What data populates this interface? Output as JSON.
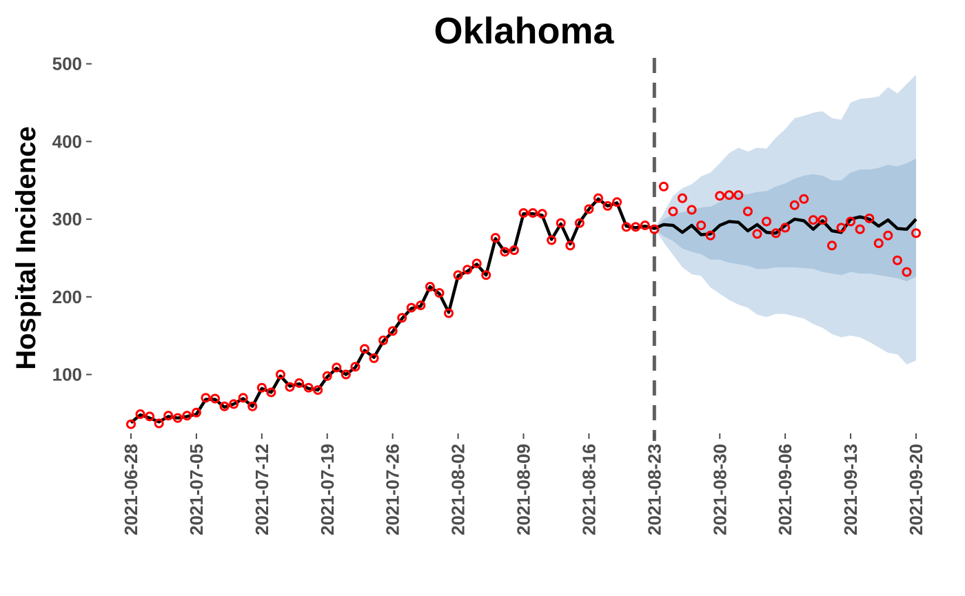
{
  "chart_data": {
    "type": "line",
    "title": "Oklahoma",
    "xlabel": "",
    "ylabel": "Hospital Incidence",
    "xlim": [
      "2021-06-28",
      "2021-09-20"
    ],
    "ylim": [
      10,
      505
    ],
    "x_ticks": [
      "2021-06-28",
      "2021-07-05",
      "2021-07-12",
      "2021-07-19",
      "2021-07-26",
      "2021-08-02",
      "2021-08-09",
      "2021-08-16",
      "2021-08-23",
      "2021-08-30",
      "2021-09-06",
      "2021-09-13",
      "2021-09-20"
    ],
    "y_ticks": [
      100,
      200,
      300,
      400,
      500
    ],
    "forecast_date": "2021-08-23",
    "grid": false,
    "colors": {
      "observed": "#ff0000",
      "fit": "#000000",
      "band_outer": "#d0dfed",
      "band_inner": "#adc8df",
      "forecast_line": "#606060"
    },
    "observed": {
      "start_date": "2021-06-28",
      "values": [
        36,
        49,
        46,
        37,
        47,
        44,
        47,
        51,
        70,
        69,
        59,
        62,
        70,
        59,
        83,
        77,
        100,
        84,
        89,
        83,
        80,
        98,
        109,
        100,
        110,
        133,
        121,
        144,
        156,
        173,
        186,
        189,
        213,
        205,
        179,
        228,
        235,
        243,
        228,
        276,
        258,
        260,
        308,
        308,
        307,
        273,
        295,
        266,
        295,
        313,
        327,
        317,
        322,
        290,
        290,
        292,
        287,
        342,
        310,
        327,
        312,
        292,
        279,
        330,
        331,
        331,
        310,
        281,
        297,
        282,
        289,
        318,
        326,
        299,
        299,
        266,
        289,
        297,
        287,
        301,
        269,
        279,
        247,
        232,
        282
      ]
    },
    "fit_line": {
      "start_date": "2021-06-28",
      "values": [
        38,
        48,
        44,
        39,
        46,
        44,
        46,
        49,
        68,
        68,
        58,
        62,
        69,
        59,
        82,
        77,
        98,
        85,
        88,
        82,
        80,
        97,
        108,
        100,
        109,
        131,
        122,
        143,
        155,
        172,
        185,
        188,
        213,
        204,
        180,
        227,
        233,
        242,
        228,
        275,
        258,
        261,
        307,
        307,
        305,
        274,
        294,
        268,
        296,
        313,
        326,
        317,
        321,
        291,
        289,
        291,
        288,
        293,
        292,
        283,
        292,
        280,
        281,
        292,
        297,
        296,
        285,
        293,
        283,
        282,
        292,
        300,
        298,
        287,
        298,
        285,
        283,
        300,
        303,
        300,
        291,
        299,
        288,
        287,
        300
      ]
    },
    "band_outer": {
      "start_date": "2021-08-23",
      "upper": [
        288,
        308,
        330,
        340,
        345,
        355,
        360,
        372,
        385,
        392,
        387,
        392,
        391,
        405,
        416,
        430,
        433,
        437,
        439,
        430,
        428,
        450,
        455,
        456,
        458,
        470,
        462,
        474,
        486
      ],
      "lower": [
        288,
        270,
        254,
        238,
        229,
        227,
        212,
        204,
        196,
        190,
        186,
        177,
        174,
        178,
        178,
        175,
        172,
        165,
        160,
        152,
        148,
        150,
        148,
        142,
        135,
        128,
        126,
        113,
        118
      ]
    },
    "band_inner": {
      "start_date": "2021-08-23",
      "upper": [
        288,
        300,
        306,
        309,
        312,
        315,
        316,
        322,
        330,
        333,
        332,
        335,
        336,
        342,
        346,
        352,
        356,
        358,
        356,
        350,
        350,
        360,
        364,
        364,
        366,
        370,
        368,
        372,
        378
      ],
      "lower": [
        288,
        278,
        272,
        262,
        258,
        255,
        248,
        248,
        244,
        242,
        240,
        236,
        236,
        238,
        238,
        238,
        237,
        236,
        232,
        230,
        228,
        232,
        230,
        230,
        228,
        226,
        224,
        220,
        226
      ]
    }
  }
}
